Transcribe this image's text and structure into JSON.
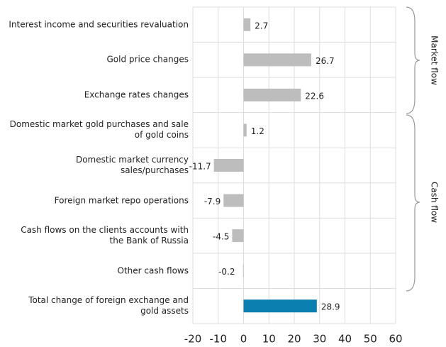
{
  "chart_data": {
    "type": "hbar",
    "categories": [
      "Interest income and securities revaluation",
      "Gold price changes",
      "Exchange rates changes",
      "Domestic market gold purchases and sale\nof gold coins",
      "Domestic market currency\nsales/purchases",
      "Foreign market repo operations",
      "Cash flows on the clients accounts with\nthe Bank of Russia",
      "Other cash flows",
      "Total change of foreign exchange and\ngold assets"
    ],
    "values": [
      2.7,
      26.7,
      22.6,
      1.2,
      -11.7,
      -7.9,
      -4.5,
      -0.2,
      28.9
    ],
    "colors": [
      "#bdbdbd",
      "#bdbdbd",
      "#bdbdbd",
      "#bdbdbd",
      "#bdbdbd",
      "#bdbdbd",
      "#bdbdbd",
      "#bdbdbd",
      "#0a7fb0"
    ],
    "xlim": [
      -20,
      60
    ],
    "xticks": [
      -20,
      -10,
      0,
      10,
      20,
      30,
      40,
      50,
      60
    ],
    "grid": true,
    "annotations": [
      "Market flow",
      "Cash flow"
    ]
  }
}
